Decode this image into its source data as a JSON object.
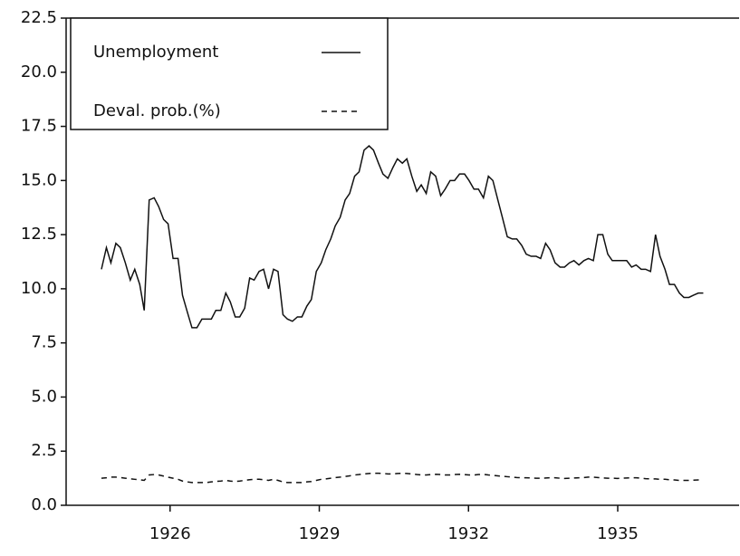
{
  "chart_data": {
    "type": "line",
    "x": [
      1924.62,
      1924.72,
      1924.81,
      1924.91,
      1925.0,
      1925.1,
      1925.2,
      1925.29,
      1925.39,
      1925.48,
      1925.58,
      1925.68,
      1925.77,
      1925.87,
      1925.96,
      1926.06,
      1926.16,
      1926.25,
      1926.35,
      1926.44,
      1926.54,
      1926.64,
      1926.73,
      1926.83,
      1926.92,
      1927.02,
      1927.12,
      1927.21,
      1927.31,
      1927.4,
      1927.5,
      1927.6,
      1927.69,
      1927.79,
      1927.88,
      1927.98,
      1928.08,
      1928.17,
      1928.27,
      1928.36,
      1928.46,
      1928.56,
      1928.65,
      1928.75,
      1928.84,
      1928.94,
      1929.04,
      1929.13,
      1929.23,
      1929.32,
      1929.42,
      1929.52,
      1929.61,
      1929.71,
      1929.8,
      1929.9,
      1930.0,
      1930.09,
      1930.19,
      1930.28,
      1930.38,
      1930.48,
      1930.57,
      1930.67,
      1930.76,
      1930.86,
      1930.96,
      1931.05,
      1931.15,
      1931.24,
      1931.34,
      1931.44,
      1931.53,
      1931.63,
      1931.72,
      1931.82,
      1931.92,
      1932.01,
      1932.11,
      1932.2,
      1932.3,
      1932.4,
      1932.49,
      1932.59,
      1932.68,
      1932.78,
      1932.88,
      1932.97,
      1933.07,
      1933.16,
      1933.26,
      1933.36,
      1933.45,
      1933.55,
      1933.64,
      1933.74,
      1933.84,
      1933.93,
      1934.03,
      1934.12,
      1934.22,
      1934.32,
      1934.41,
      1934.51,
      1934.6,
      1934.7,
      1934.8,
      1934.89,
      1934.99,
      1935.08,
      1935.18,
      1935.28,
      1935.37,
      1935.47,
      1935.56,
      1935.66,
      1935.76,
      1935.85,
      1935.95,
      1936.04,
      1936.14,
      1936.24,
      1936.33,
      1936.43,
      1936.52,
      1936.62,
      1936.72
    ],
    "series": [
      {
        "name": "Unemployment",
        "color": "#111111",
        "linestyle": "solid",
        "values": [
          10.9,
          11.9,
          11.2,
          12.1,
          11.9,
          11.2,
          10.4,
          10.9,
          10.2,
          9.0,
          14.1,
          14.2,
          13.8,
          13.2,
          13.0,
          11.4,
          11.4,
          9.7,
          8.9,
          8.2,
          8.2,
          8.6,
          8.6,
          8.6,
          9.0,
          9.0,
          9.8,
          9.4,
          8.7,
          8.7,
          9.1,
          10.5,
          10.4,
          10.8,
          10.9,
          10.0,
          10.9,
          10.8,
          8.8,
          8.6,
          8.5,
          8.7,
          8.7,
          9.2,
          9.5,
          10.8,
          11.2,
          11.8,
          12.3,
          12.9,
          13.3,
          14.1,
          14.4,
          15.2,
          15.4,
          16.4,
          16.6,
          16.4,
          15.8,
          15.3,
          15.1,
          15.6,
          16.0,
          15.8,
          16.0,
          15.2,
          14.5,
          14.8,
          14.4,
          15.4,
          15.2,
          14.3,
          14.6,
          15.0,
          15.0,
          15.3,
          15.3,
          15.0,
          14.6,
          14.6,
          14.2,
          15.2,
          15.0,
          14.1,
          13.3,
          12.4,
          12.3,
          12.3,
          12.0,
          11.6,
          11.5,
          11.5,
          11.4,
          12.1,
          11.8,
          11.2,
          11.0,
          11.0,
          11.2,
          11.3,
          11.1,
          11.3,
          11.4,
          11.3,
          12.5,
          12.5,
          11.6,
          11.3,
          11.3,
          11.3,
          11.3,
          11.0,
          11.1,
          10.9,
          10.9,
          10.8,
          12.5,
          11.5,
          10.9,
          10.2,
          10.2,
          9.8,
          9.6,
          9.6,
          9.7,
          9.8,
          9.8
        ]
      },
      {
        "name": "Deval. prob.(%)",
        "color": "#111111",
        "linestyle": "dashed",
        "values": [
          1.25,
          1.27,
          1.3,
          1.3,
          1.28,
          1.25,
          1.22,
          1.2,
          1.18,
          1.15,
          1.4,
          1.42,
          1.4,
          1.35,
          1.3,
          1.25,
          1.2,
          1.12,
          1.08,
          1.05,
          1.05,
          1.05,
          1.05,
          1.08,
          1.1,
          1.12,
          1.15,
          1.12,
          1.1,
          1.12,
          1.15,
          1.18,
          1.2,
          1.2,
          1.18,
          1.15,
          1.2,
          1.15,
          1.08,
          1.05,
          1.05,
          1.05,
          1.05,
          1.08,
          1.1,
          1.15,
          1.2,
          1.22,
          1.25,
          1.28,
          1.3,
          1.33,
          1.36,
          1.4,
          1.42,
          1.45,
          1.47,
          1.48,
          1.48,
          1.47,
          1.45,
          1.45,
          1.47,
          1.48,
          1.47,
          1.45,
          1.42,
          1.4,
          1.4,
          1.42,
          1.43,
          1.42,
          1.4,
          1.4,
          1.42,
          1.43,
          1.42,
          1.4,
          1.4,
          1.42,
          1.43,
          1.4,
          1.38,
          1.36,
          1.34,
          1.32,
          1.3,
          1.28,
          1.27,
          1.27,
          1.26,
          1.25,
          1.25,
          1.26,
          1.27,
          1.27,
          1.25,
          1.24,
          1.25,
          1.26,
          1.27,
          1.28,
          1.3,
          1.3,
          1.28,
          1.26,
          1.25,
          1.25,
          1.24,
          1.25,
          1.26,
          1.27,
          1.27,
          1.25,
          1.23,
          1.22,
          1.22,
          1.2,
          1.2,
          1.18,
          1.17,
          1.15,
          1.15,
          1.15,
          1.16,
          1.17,
          1.17
        ]
      }
    ],
    "xlim": [
      1923.91,
      1937.44
    ],
    "xticks": [
      1926,
      1929,
      1932,
      1935
    ],
    "ylim": [
      0,
      22.5
    ],
    "yticks": [
      {
        "value": 0,
        "label": "0.0"
      },
      2.5,
      {
        "value": 5,
        "label": "5.0"
      },
      7.5,
      {
        "value": 10,
        "label": "10.0"
      },
      12.5,
      {
        "value": 15,
        "label": "15.0"
      },
      17.5,
      {
        "value": 20,
        "label": "20.0"
      },
      22.5
    ],
    "legend": "upper left"
  }
}
